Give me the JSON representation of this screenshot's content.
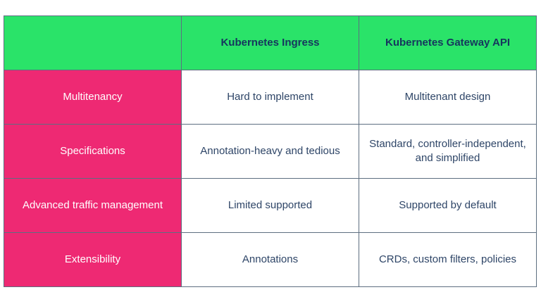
{
  "colors": {
    "header_bg": "#2ae369",
    "row_label_bg": "#ee2973",
    "header_text": "#16355e",
    "cell_text": "#2e4567",
    "row_label_text": "#ffffff",
    "grid_border": "#5d6e80",
    "canvas_bg": "#ffffff"
  },
  "chart_data": {
    "type": "table",
    "title": "",
    "columns": [
      "",
      "Kubernetes Ingress",
      "Kubernetes Gateway API"
    ],
    "rows": [
      {
        "label": "Multitenancy",
        "ingress": "Hard to implement",
        "gateway": "Multitenant design"
      },
      {
        "label": "Specifications",
        "ingress": "Annotation-heavy and tedious",
        "gateway": "Standard, controller-independent, and simplified"
      },
      {
        "label": "Advanced traffic management",
        "ingress": "Limited supported",
        "gateway": "Supported by default"
      },
      {
        "label": "Extensibility",
        "ingress": "Annotations",
        "gateway": "CRDs, custom filters, policies"
      }
    ],
    "layout": {
      "header_row": "green background, bold navy text",
      "label_column": "magenta background, white text",
      "data_cells": "white background, navy text, centered"
    }
  }
}
